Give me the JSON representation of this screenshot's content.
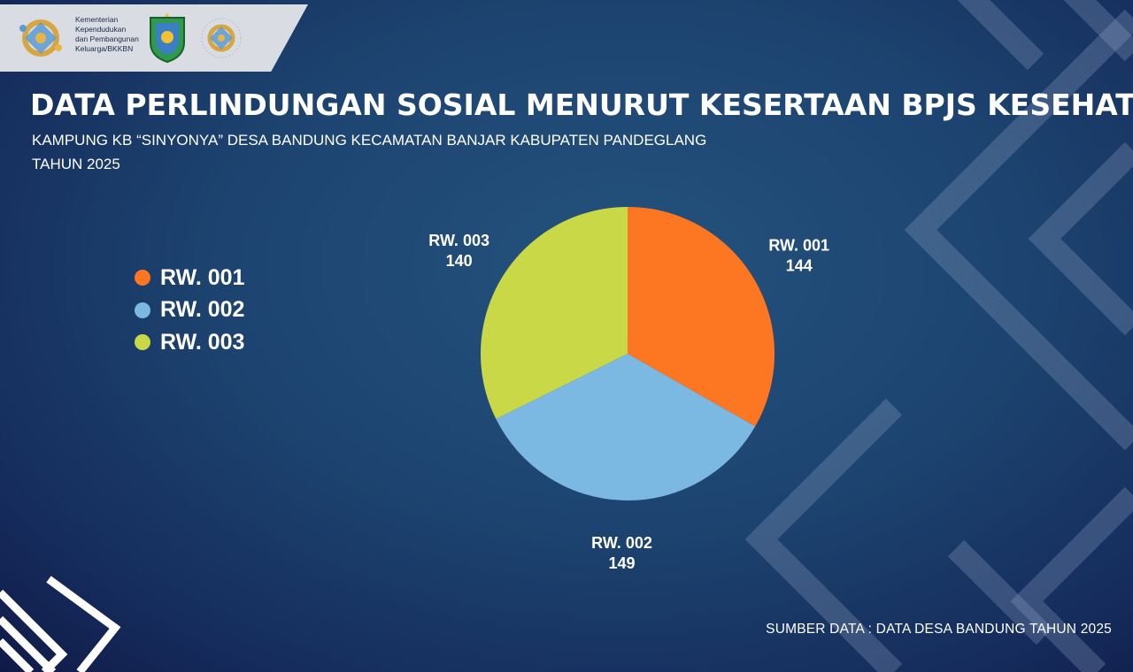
{
  "header": {
    "ministry_lines": [
      "Kementerian",
      "Kependudukan",
      "dan Pembangunan",
      "Keluarga/BKKBN"
    ]
  },
  "title": "DATA PERLINDUNGAN SOSIAL MENURUT KESERTAAN BPJS KESEHATAN",
  "subtitle_line1": "KAMPUNG KB “SINYONYA” DESA BANDUNG KECAMATAN BANJAR KABUPATEN PANDEGLANG",
  "subtitle_line2": "TAHUN 2025",
  "source": "SUMBER DATA : DATA DESA BANDUNG TAHUN 2025",
  "chart_data": {
    "type": "pie",
    "categories": [
      "RW. 001",
      "RW. 002",
      "RW. 003"
    ],
    "values": [
      144,
      149,
      140
    ],
    "colors": [
      "#fd7622",
      "#7bb9e3",
      "#c8d847"
    ],
    "legend": "left",
    "labels_shown": true
  }
}
